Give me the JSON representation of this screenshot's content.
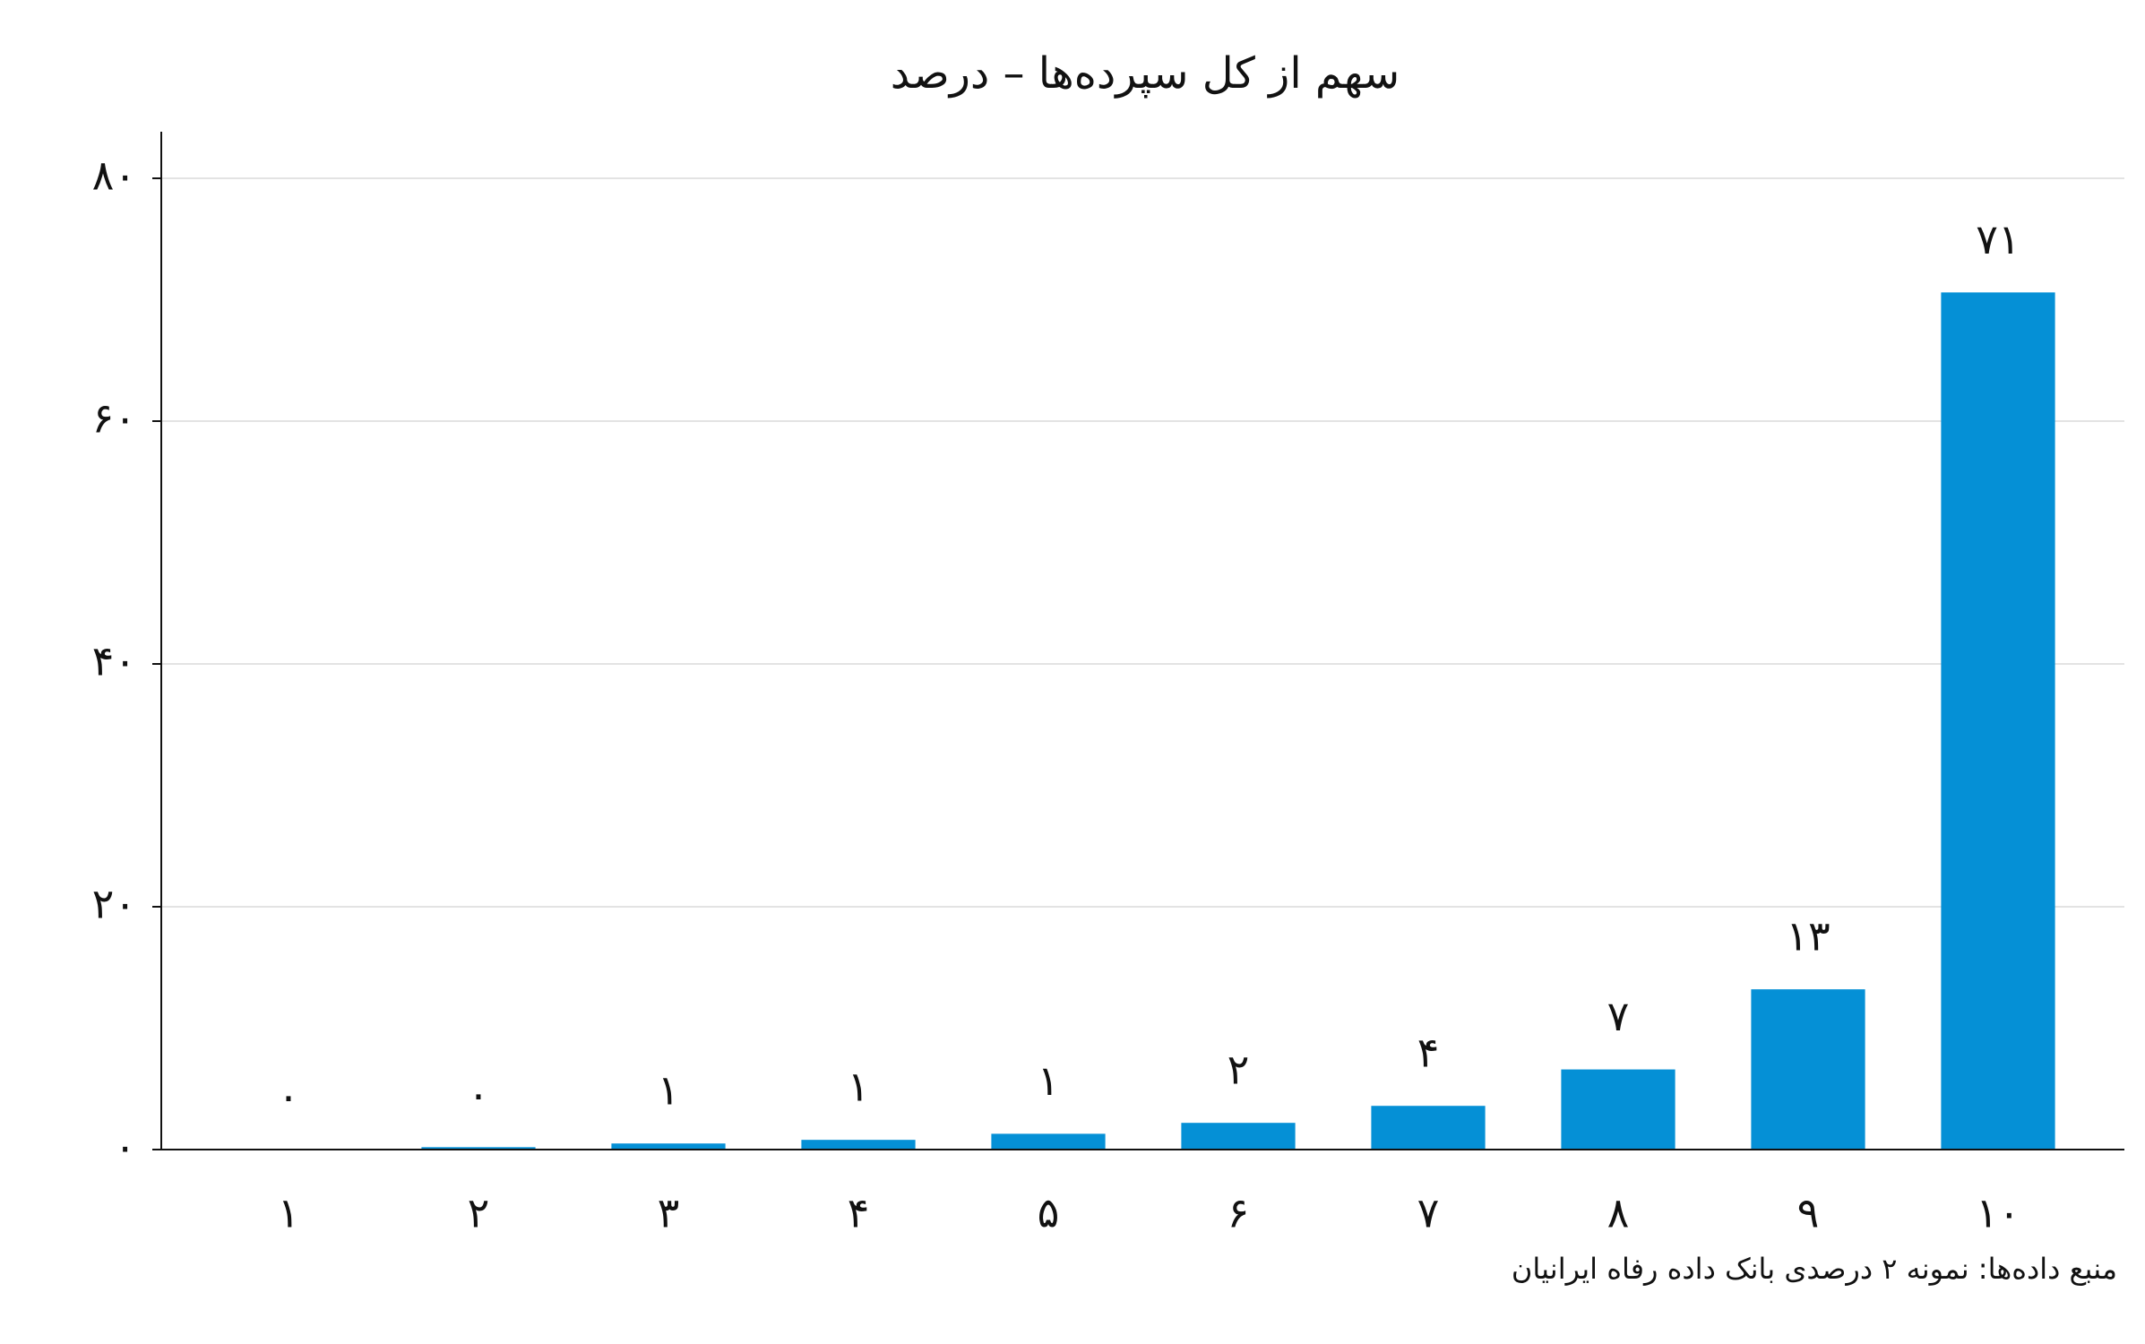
{
  "chart_data": {
    "type": "bar",
    "title": "سهم از کل سپرده‌ها – درصد",
    "categories": [
      "۱",
      "۲",
      "۳",
      "۴",
      "۵",
      "۶",
      "۷",
      "۸",
      "۹",
      "۱۰"
    ],
    "values": [
      0.05,
      0.2,
      0.5,
      0.8,
      1.3,
      2.2,
      3.6,
      6.6,
      13.2,
      70.6
    ],
    "value_labels": [
      "۰",
      "۰",
      "۱",
      "۱",
      "۱",
      "۲",
      "۴",
      "۷",
      "۱۳",
      "۷۱"
    ],
    "color": "#0590d6",
    "ylim": [
      0,
      80
    ],
    "yticks": [
      {
        "value": 0,
        "label": "۰"
      },
      {
        "value": 20,
        "label": "۲۰"
      },
      {
        "value": 40,
        "label": "۴۰"
      },
      {
        "value": 60,
        "label": "۶۰"
      },
      {
        "value": 80,
        "label": "۸۰"
      }
    ],
    "grid": true,
    "note": "منبع داده‌ها: نمونه ۲ درصدی بانک داده رفاه ایرانیان"
  }
}
